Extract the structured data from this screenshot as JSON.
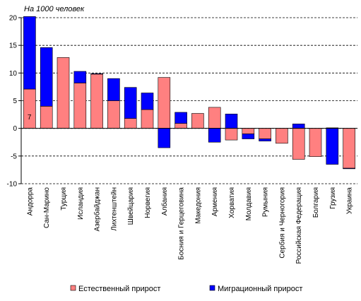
{
  "chart_data": {
    "type": "bar",
    "stacked": true,
    "ylabel": "На 1000 человек",
    "ylim": [
      -10,
      20
    ],
    "yticks": [
      -10,
      -5,
      0,
      5,
      10,
      15,
      20
    ],
    "grid": true,
    "legend_position": "bottom",
    "categories": [
      "Андорра",
      "Сан-Марино",
      "Турция",
      "Исландия",
      "Азербайджан",
      "Лихтенштейн",
      "Швейцария",
      "Норвегия",
      "Албания",
      "Босния и Герцеговина",
      "Македония",
      "Армения",
      "Хорватия",
      "Молдавия",
      "Румыния",
      "Сербия и Черногория",
      "Российская Федерация",
      "Болгария",
      "Грузия",
      "Украина"
    ],
    "series": [
      {
        "name": "Естественный прирост",
        "color": "#ff8080",
        "values": [
          7.1,
          4.0,
          12.8,
          8.2,
          9.8,
          5.0,
          1.8,
          3.4,
          9.2,
          0.9,
          2.7,
          3.8,
          -2.1,
          -1.0,
          -1.9,
          -2.7,
          -5.6,
          -5.1,
          0.1,
          -7.2
        ]
      },
      {
        "name": "Миграционный прирост",
        "color": "#0000ff",
        "values": [
          13.1,
          10.6,
          0.0,
          2.1,
          0.1,
          4.0,
          5.6,
          3.0,
          -3.5,
          2.0,
          0.0,
          -2.5,
          2.6,
          -0.9,
          -0.4,
          0.0,
          0.8,
          0.0,
          -6.5,
          -0.1
        ]
      }
    ],
    "annotations": [
      {
        "category": "Андорра",
        "text": "7"
      }
    ]
  }
}
